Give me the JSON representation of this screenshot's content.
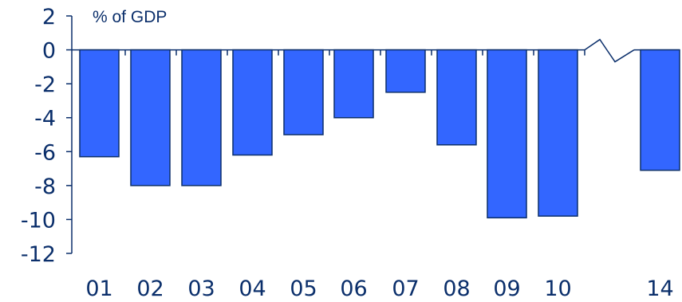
{
  "chart_data": {
    "type": "bar",
    "unit_label": "% of  GDP",
    "categories": [
      "01",
      "02",
      "03",
      "04",
      "05",
      "06",
      "07",
      "08",
      "09",
      "10",
      "14"
    ],
    "values": [
      -6.3,
      -8.0,
      -8.0,
      -6.2,
      -5.0,
      -4.0,
      -2.5,
      -5.6,
      -9.9,
      -9.8,
      -7.1
    ],
    "ylim": [
      -12,
      2
    ],
    "yticks": [
      "2",
      "0",
      "-2",
      "-4",
      "-6",
      "-8",
      "-10",
      "-12"
    ],
    "axis_break_between": [
      "10",
      "14"
    ],
    "grid": false,
    "legend": "none",
    "colors": {
      "bar_fill": "#3366ff",
      "axis": "#0b2f6b",
      "text": "#0b2f6b"
    }
  }
}
